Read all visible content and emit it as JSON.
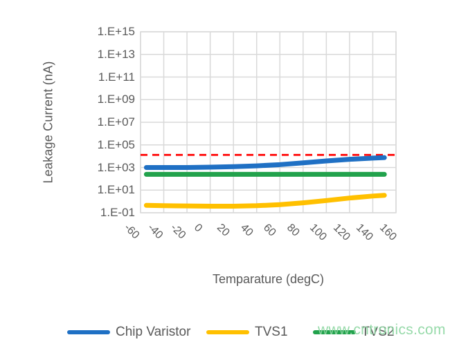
{
  "watermark_text": "www.cntronics.com",
  "chart_data": {
    "type": "line",
    "title": "",
    "xlabel": "Temparature (degC)",
    "ylabel": "Leakage Current (nA)",
    "grid": true,
    "legend_position": "bottom",
    "x_axis": {
      "min": -60,
      "max": 160,
      "tick_step": 20,
      "tick_values": [
        -60,
        -40,
        -20,
        0,
        20,
        40,
        60,
        80,
        100,
        120,
        140,
        160
      ],
      "tick_labels": [
        "-60",
        "-40",
        "-20",
        "0",
        "20",
        "40",
        "60",
        "80",
        "100",
        "120",
        "140",
        "160"
      ]
    },
    "y_axis": {
      "scale": "log",
      "min_exponent": -1,
      "max_exponent": 15,
      "tick_exponents": [
        15,
        13,
        11,
        9,
        7,
        5,
        3,
        1,
        -1
      ],
      "tick_labels": [
        "1.E+15",
        "1.E+13",
        "1.E+11",
        "1.E+09",
        "1.E+07",
        "1.E+05",
        "1.E+03",
        "1.E+01",
        "1.E-01"
      ]
    },
    "threshold_line": {
      "name": "leakage-limit",
      "value": 13000,
      "color": "#FF0000",
      "style": "dashed"
    },
    "series": [
      {
        "name": "Chip Varistor",
        "color": "#1F70C4",
        "points": [
          [
            -55,
            1000
          ],
          [
            -40,
            1000
          ],
          [
            -20,
            1000
          ],
          [
            0,
            1080
          ],
          [
            20,
            1200
          ],
          [
            40,
            1400
          ],
          [
            60,
            1800
          ],
          [
            80,
            2600
          ],
          [
            100,
            3800
          ],
          [
            120,
            5300
          ],
          [
            140,
            6800
          ],
          [
            150,
            7500
          ]
        ]
      },
      {
        "name": "TVS1",
        "color": "#FFC000",
        "points": [
          [
            -55,
            0.45
          ],
          [
            -40,
            0.42
          ],
          [
            -20,
            0.4
          ],
          [
            0,
            0.38
          ],
          [
            20,
            0.38
          ],
          [
            40,
            0.42
          ],
          [
            60,
            0.52
          ],
          [
            80,
            0.75
          ],
          [
            100,
            1.2
          ],
          [
            120,
            2.0
          ],
          [
            140,
            3.0
          ],
          [
            150,
            3.5
          ]
        ]
      },
      {
        "name": "TVS2",
        "color": "#22A24C",
        "points": [
          [
            -55,
            250
          ],
          [
            -20,
            250
          ],
          [
            20,
            250
          ],
          [
            60,
            250
          ],
          [
            100,
            250
          ],
          [
            150,
            250
          ]
        ]
      }
    ],
    "legend": {
      "entries": [
        {
          "label": "Chip Varistor",
          "color": "#1F70C4"
        },
        {
          "label": "TVS1",
          "color": "#FFC000"
        },
        {
          "label": "TVS2",
          "color": "#22A24C"
        }
      ]
    },
    "grid_color": "#D9D9D9",
    "axis_text_color": "#595959"
  }
}
